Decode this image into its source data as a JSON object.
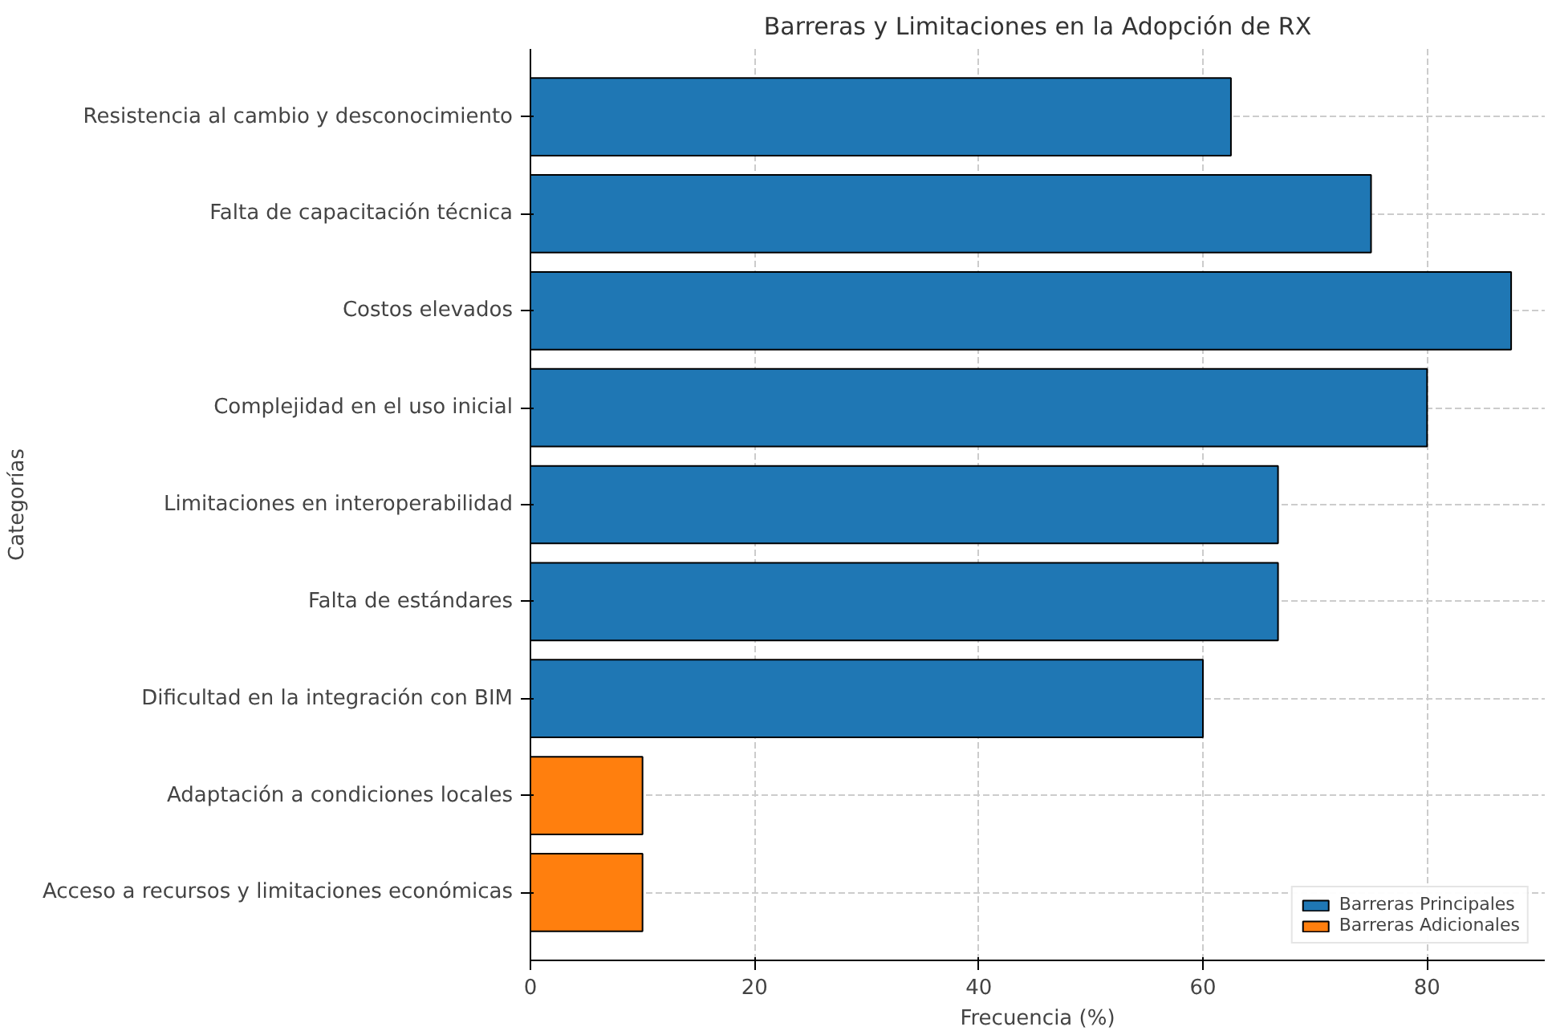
{
  "chart_data": {
    "type": "bar",
    "orientation": "horizontal",
    "title": "Barreras y Limitaciones en la Adopción de RX",
    "xlabel": "Frecuencia (%)",
    "ylabel": "Categorías",
    "categories": [
      "Resistencia al cambio y desconocimiento",
      "Falta de capacitación técnica",
      "Costos elevados",
      "Complejidad en el uso inicial",
      "Limitaciones en interoperabilidad",
      "Falta de estándares",
      "Dificultad en la integración con BIM",
      "Adaptación a condiciones locales",
      "Acceso a recursos y limitaciones económicas"
    ],
    "series": [
      {
        "name": "Barreras Principales",
        "color": "#1f77b4",
        "values": [
          62.5,
          75,
          87.5,
          80,
          66.7,
          66.7,
          60,
          null,
          null
        ]
      },
      {
        "name": "Barreras Adicionales",
        "color": "#ff7f0e",
        "values": [
          null,
          null,
          null,
          null,
          null,
          null,
          null,
          10,
          10
        ]
      }
    ],
    "xlim": [
      0,
      90.5
    ],
    "xticks": [
      0,
      20,
      40,
      60,
      80
    ],
    "grid": true,
    "legend": "bottom right"
  }
}
